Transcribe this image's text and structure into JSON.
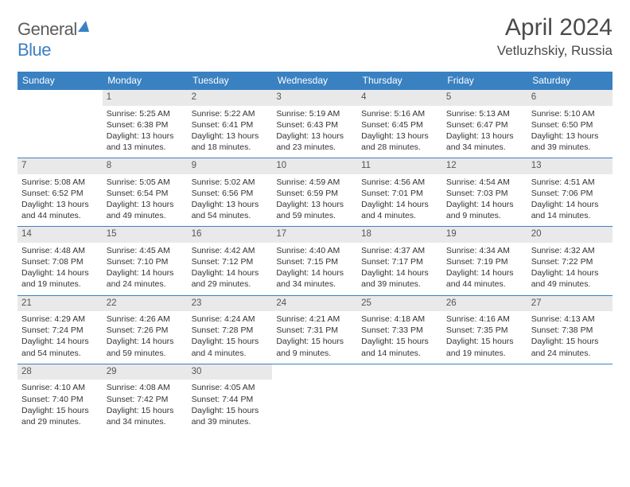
{
  "logo": {
    "text1": "General",
    "text2": "Blue"
  },
  "title": "April 2024",
  "location": "Vetluzhskiy, Russia",
  "colors": {
    "header_bg": "#3a81c2",
    "header_text": "#ffffff",
    "grid_line": "#3a81c2",
    "daynum_bg": "#e9e9e9",
    "daynum_text": "#555555",
    "body_text": "#333333",
    "page_bg": "#ffffff",
    "logo_gray": "#5c5c5c",
    "logo_blue": "#3a81c2"
  },
  "typography": {
    "month_title_size_pt": 22,
    "location_size_pt": 13,
    "weekday_size_pt": 9,
    "cell_size_pt": 8
  },
  "weekdays": [
    "Sunday",
    "Monday",
    "Tuesday",
    "Wednesday",
    "Thursday",
    "Friday",
    "Saturday"
  ],
  "grid": [
    [
      {
        "day": "",
        "lines": []
      },
      {
        "day": "1",
        "lines": [
          "Sunrise: 5:25 AM",
          "Sunset: 6:38 PM",
          "Daylight: 13 hours",
          "and 13 minutes."
        ]
      },
      {
        "day": "2",
        "lines": [
          "Sunrise: 5:22 AM",
          "Sunset: 6:41 PM",
          "Daylight: 13 hours",
          "and 18 minutes."
        ]
      },
      {
        "day": "3",
        "lines": [
          "Sunrise: 5:19 AM",
          "Sunset: 6:43 PM",
          "Daylight: 13 hours",
          "and 23 minutes."
        ]
      },
      {
        "day": "4",
        "lines": [
          "Sunrise: 5:16 AM",
          "Sunset: 6:45 PM",
          "Daylight: 13 hours",
          "and 28 minutes."
        ]
      },
      {
        "day": "5",
        "lines": [
          "Sunrise: 5:13 AM",
          "Sunset: 6:47 PM",
          "Daylight: 13 hours",
          "and 34 minutes."
        ]
      },
      {
        "day": "6",
        "lines": [
          "Sunrise: 5:10 AM",
          "Sunset: 6:50 PM",
          "Daylight: 13 hours",
          "and 39 minutes."
        ]
      }
    ],
    [
      {
        "day": "7",
        "lines": [
          "Sunrise: 5:08 AM",
          "Sunset: 6:52 PM",
          "Daylight: 13 hours",
          "and 44 minutes."
        ]
      },
      {
        "day": "8",
        "lines": [
          "Sunrise: 5:05 AM",
          "Sunset: 6:54 PM",
          "Daylight: 13 hours",
          "and 49 minutes."
        ]
      },
      {
        "day": "9",
        "lines": [
          "Sunrise: 5:02 AM",
          "Sunset: 6:56 PM",
          "Daylight: 13 hours",
          "and 54 minutes."
        ]
      },
      {
        "day": "10",
        "lines": [
          "Sunrise: 4:59 AM",
          "Sunset: 6:59 PM",
          "Daylight: 13 hours",
          "and 59 minutes."
        ]
      },
      {
        "day": "11",
        "lines": [
          "Sunrise: 4:56 AM",
          "Sunset: 7:01 PM",
          "Daylight: 14 hours",
          "and 4 minutes."
        ]
      },
      {
        "day": "12",
        "lines": [
          "Sunrise: 4:54 AM",
          "Sunset: 7:03 PM",
          "Daylight: 14 hours",
          "and 9 minutes."
        ]
      },
      {
        "day": "13",
        "lines": [
          "Sunrise: 4:51 AM",
          "Sunset: 7:06 PM",
          "Daylight: 14 hours",
          "and 14 minutes."
        ]
      }
    ],
    [
      {
        "day": "14",
        "lines": [
          "Sunrise: 4:48 AM",
          "Sunset: 7:08 PM",
          "Daylight: 14 hours",
          "and 19 minutes."
        ]
      },
      {
        "day": "15",
        "lines": [
          "Sunrise: 4:45 AM",
          "Sunset: 7:10 PM",
          "Daylight: 14 hours",
          "and 24 minutes."
        ]
      },
      {
        "day": "16",
        "lines": [
          "Sunrise: 4:42 AM",
          "Sunset: 7:12 PM",
          "Daylight: 14 hours",
          "and 29 minutes."
        ]
      },
      {
        "day": "17",
        "lines": [
          "Sunrise: 4:40 AM",
          "Sunset: 7:15 PM",
          "Daylight: 14 hours",
          "and 34 minutes."
        ]
      },
      {
        "day": "18",
        "lines": [
          "Sunrise: 4:37 AM",
          "Sunset: 7:17 PM",
          "Daylight: 14 hours",
          "and 39 minutes."
        ]
      },
      {
        "day": "19",
        "lines": [
          "Sunrise: 4:34 AM",
          "Sunset: 7:19 PM",
          "Daylight: 14 hours",
          "and 44 minutes."
        ]
      },
      {
        "day": "20",
        "lines": [
          "Sunrise: 4:32 AM",
          "Sunset: 7:22 PM",
          "Daylight: 14 hours",
          "and 49 minutes."
        ]
      }
    ],
    [
      {
        "day": "21",
        "lines": [
          "Sunrise: 4:29 AM",
          "Sunset: 7:24 PM",
          "Daylight: 14 hours",
          "and 54 minutes."
        ]
      },
      {
        "day": "22",
        "lines": [
          "Sunrise: 4:26 AM",
          "Sunset: 7:26 PM",
          "Daylight: 14 hours",
          "and 59 minutes."
        ]
      },
      {
        "day": "23",
        "lines": [
          "Sunrise: 4:24 AM",
          "Sunset: 7:28 PM",
          "Daylight: 15 hours",
          "and 4 minutes."
        ]
      },
      {
        "day": "24",
        "lines": [
          "Sunrise: 4:21 AM",
          "Sunset: 7:31 PM",
          "Daylight: 15 hours",
          "and 9 minutes."
        ]
      },
      {
        "day": "25",
        "lines": [
          "Sunrise: 4:18 AM",
          "Sunset: 7:33 PM",
          "Daylight: 15 hours",
          "and 14 minutes."
        ]
      },
      {
        "day": "26",
        "lines": [
          "Sunrise: 4:16 AM",
          "Sunset: 7:35 PM",
          "Daylight: 15 hours",
          "and 19 minutes."
        ]
      },
      {
        "day": "27",
        "lines": [
          "Sunrise: 4:13 AM",
          "Sunset: 7:38 PM",
          "Daylight: 15 hours",
          "and 24 minutes."
        ]
      }
    ],
    [
      {
        "day": "28",
        "lines": [
          "Sunrise: 4:10 AM",
          "Sunset: 7:40 PM",
          "Daylight: 15 hours",
          "and 29 minutes."
        ]
      },
      {
        "day": "29",
        "lines": [
          "Sunrise: 4:08 AM",
          "Sunset: 7:42 PM",
          "Daylight: 15 hours",
          "and 34 minutes."
        ]
      },
      {
        "day": "30",
        "lines": [
          "Sunrise: 4:05 AM",
          "Sunset: 7:44 PM",
          "Daylight: 15 hours",
          "and 39 minutes."
        ]
      },
      {
        "day": "",
        "lines": []
      },
      {
        "day": "",
        "lines": []
      },
      {
        "day": "",
        "lines": []
      },
      {
        "day": "",
        "lines": []
      }
    ]
  ]
}
